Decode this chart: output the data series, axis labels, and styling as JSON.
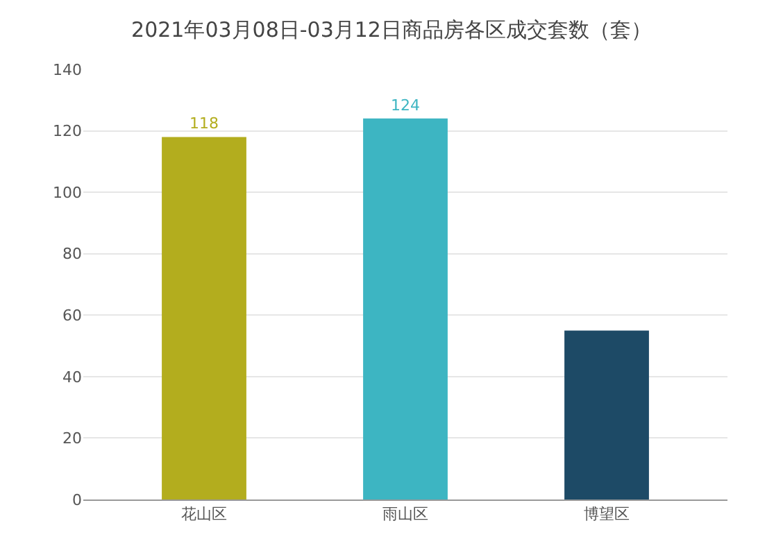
{
  "chart_data": {
    "type": "bar",
    "title": "2021年03月08日-03月12日商品房各区成交套数（套）",
    "categories": [
      "花山区",
      "雨山区",
      "博望区"
    ],
    "values": [
      118,
      124,
      55
    ],
    "colors": [
      "#b3ad1e",
      "#3db5c2",
      "#1d4a66"
    ],
    "value_labels": [
      "118",
      "124",
      null
    ],
    "ylim": [
      0,
      140
    ],
    "yticks": [
      0,
      20,
      40,
      60,
      80,
      100,
      120,
      140
    ],
    "grid": "y"
  }
}
